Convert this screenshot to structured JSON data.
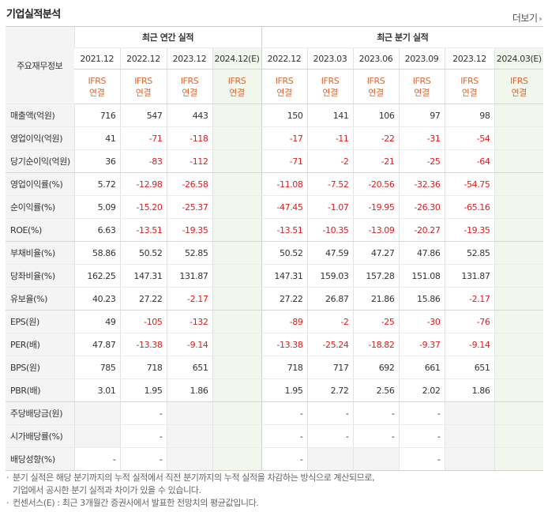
{
  "header": {
    "title": "기업실적분석",
    "more_label": "더보기"
  },
  "table": {
    "row_header_label": "주요재무정보",
    "group_annual": "최근 연간 실적",
    "group_quarter": "최근 분기 실적",
    "periods": [
      "2021.12",
      "2022.12",
      "2023.12",
      "2024.12(E)",
      "2022.12",
      "2023.03",
      "2023.06",
      "2023.09",
      "2023.12",
      "2024.03(E)"
    ],
    "ifrs": "IFRS",
    "consolidated": "연결",
    "rows": [
      {
        "label": "매출액(억원)",
        "values": [
          "716",
          "547",
          "443",
          "",
          "150",
          "141",
          "106",
          "97",
          "98",
          ""
        ]
      },
      {
        "label": "영업이익(억원)",
        "values": [
          "41",
          "-71",
          "-118",
          "",
          "-17",
          "-11",
          "-22",
          "-31",
          "-54",
          ""
        ]
      },
      {
        "label": "당기순이익(억원)",
        "values": [
          "36",
          "-83",
          "-112",
          "",
          "-71",
          "-2",
          "-21",
          "-25",
          "-64",
          ""
        ]
      },
      {
        "label": "영업이익률(%)",
        "values": [
          "5.72",
          "-12.98",
          "-26.58",
          "",
          "-11.08",
          "-7.52",
          "-20.56",
          "-32.36",
          "-54.75",
          ""
        ]
      },
      {
        "label": "순이익률(%)",
        "values": [
          "5.09",
          "-15.20",
          "-25.37",
          "",
          "-47.45",
          "-1.07",
          "-19.95",
          "-26.30",
          "-65.16",
          ""
        ]
      },
      {
        "label": "ROE(%)",
        "values": [
          "6.63",
          "-13.51",
          "-19.35",
          "",
          "-13.51",
          "-10.35",
          "-13.09",
          "-20.27",
          "-19.35",
          ""
        ]
      },
      {
        "label": "부채비율(%)",
        "values": [
          "58.86",
          "50.52",
          "52.85",
          "",
          "50.52",
          "47.59",
          "47.27",
          "47.86",
          "52.85",
          ""
        ]
      },
      {
        "label": "당좌비율(%)",
        "values": [
          "162.25",
          "147.31",
          "131.87",
          "",
          "147.31",
          "159.03",
          "157.28",
          "151.08",
          "131.87",
          ""
        ]
      },
      {
        "label": "유보율(%)",
        "values": [
          "40.23",
          "27.22",
          "-2.17",
          "",
          "27.22",
          "26.87",
          "21.86",
          "15.86",
          "-2.17",
          ""
        ]
      },
      {
        "label": "EPS(원)",
        "values": [
          "49",
          "-105",
          "-132",
          "",
          "-89",
          "-2",
          "-25",
          "-30",
          "-76",
          ""
        ]
      },
      {
        "label": "PER(배)",
        "values": [
          "47.87",
          "-13.38",
          "-9.14",
          "",
          "-13.38",
          "-25.24",
          "-18.82",
          "-9.37",
          "-9.14",
          ""
        ]
      },
      {
        "label": "BPS(원)",
        "values": [
          "785",
          "718",
          "651",
          "",
          "718",
          "717",
          "692",
          "661",
          "651",
          ""
        ]
      },
      {
        "label": "PBR(배)",
        "values": [
          "3.01",
          "1.95",
          "1.86",
          "",
          "1.95",
          "2.72",
          "2.56",
          "2.02",
          "1.86",
          ""
        ]
      },
      {
        "label": "주당배당금(원)",
        "values": [
          "",
          "-",
          "",
          "",
          "-",
          "-",
          "-",
          "-",
          "",
          ""
        ]
      },
      {
        "label": "시가배당률(%)",
        "values": [
          "",
          "-",
          "",
          "",
          "-",
          "-",
          "-",
          "-",
          "",
          ""
        ]
      },
      {
        "label": "배당성향(%)",
        "values": [
          "-",
          "-",
          "",
          "",
          "-",
          "",
          "",
          "-",
          "",
          ""
        ]
      }
    ]
  },
  "notes": [
    "분기 실적은 해당 분기까지의 누적 실적에서 직전 분기까지의 누적 실적을 차감하는 방식으로 계산되므로,",
    "기업에서 공시한 분기 실적과 차이가 있을 수 있습니다.",
    "컨센서스(E) : 최근 3개월간 증권사에서 발표한 전망치의 평균값입니다."
  ],
  "colors": {
    "negative": "#e31c1c",
    "ifrs": "#e1672e",
    "estimate_bg": "#f2f7ee",
    "label_bg": "#f4f4f4"
  }
}
